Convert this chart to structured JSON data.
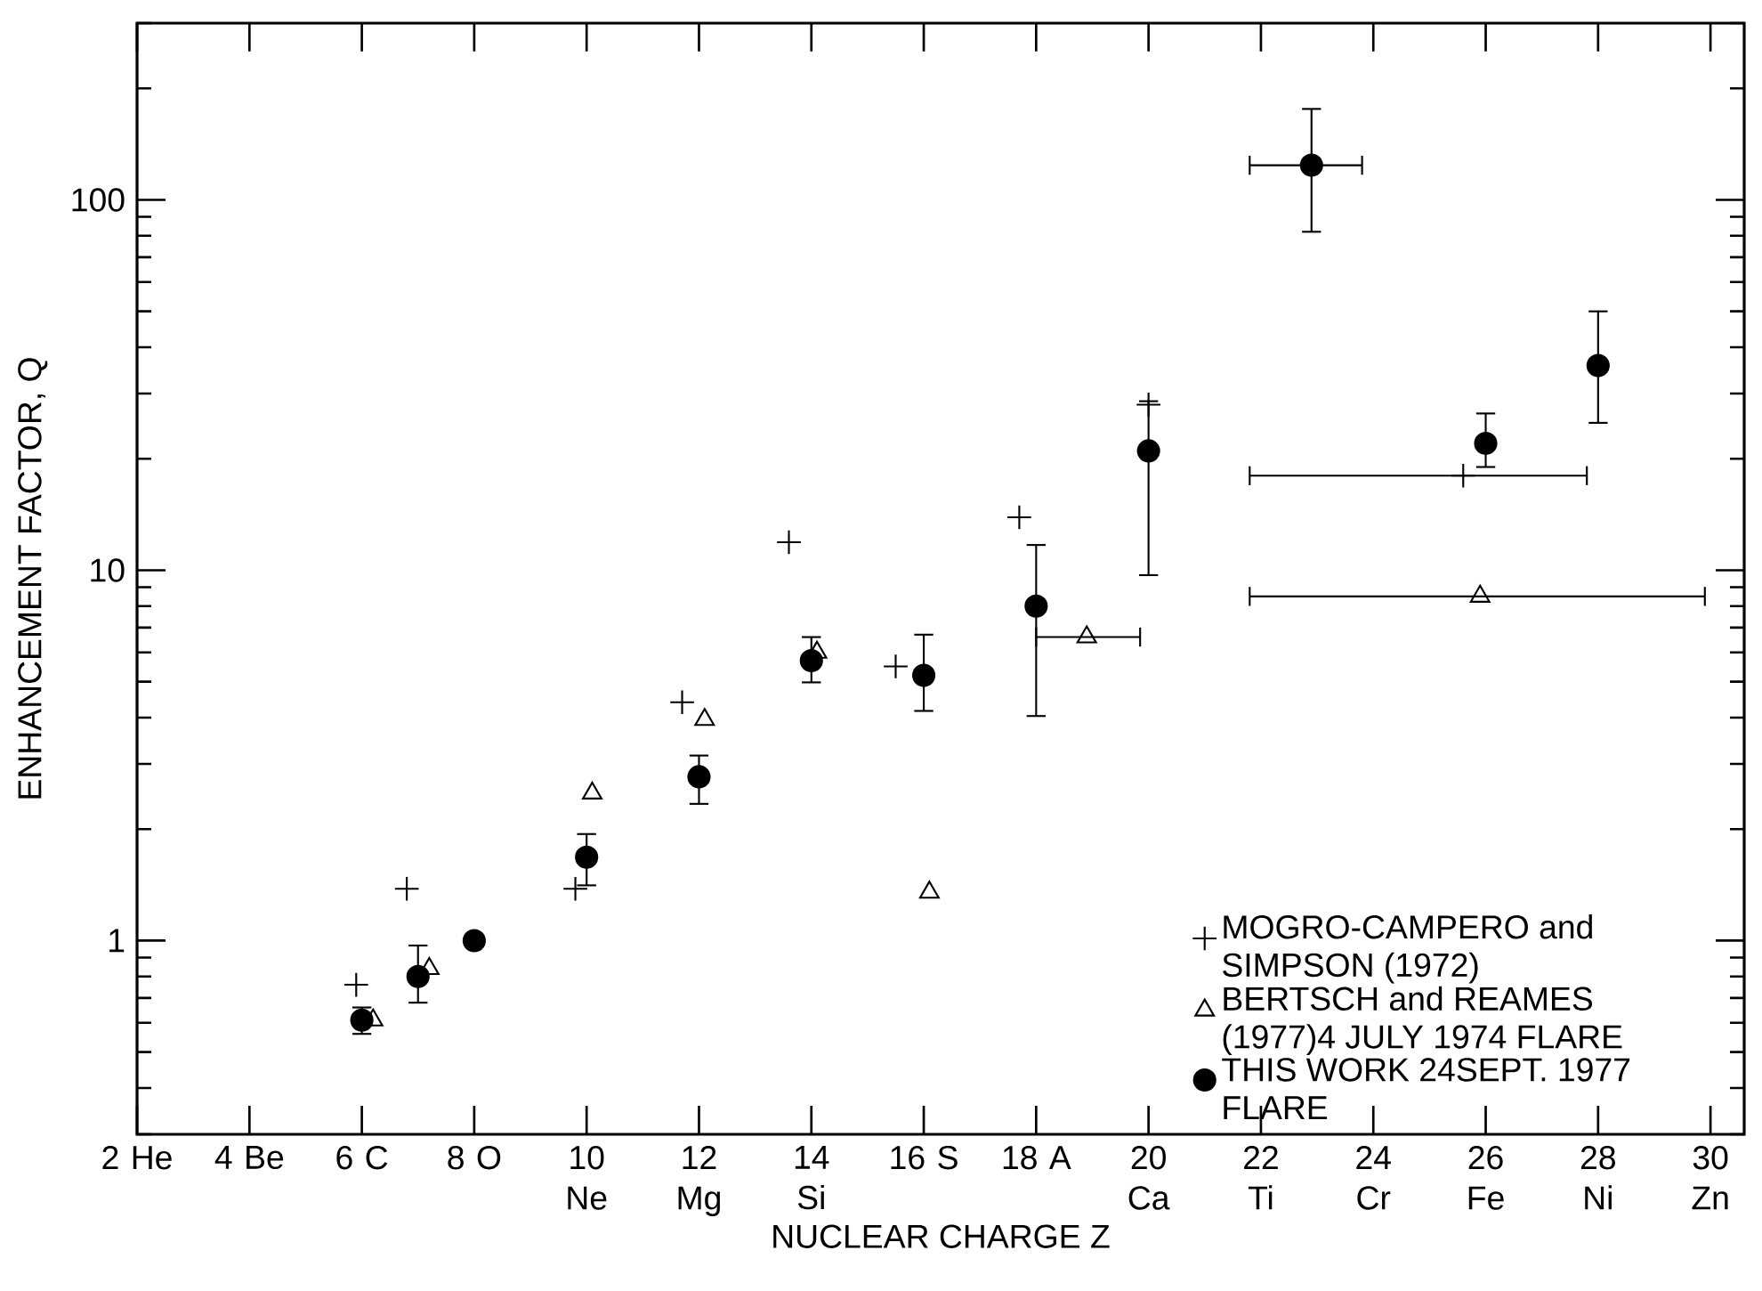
{
  "chart_data": {
    "type": "scatter",
    "xlabel": "NUCLEAR CHARGE Z",
    "ylabel": "ENHANCEMENT FACTOR, Q",
    "xlim": [
      2,
      30.6
    ],
    "ylim": [
      0.3,
      300
    ],
    "log": "y",
    "grid": false,
    "legend": "bottom right",
    "xticks": [
      {
        "value": 2,
        "label": "2 He"
      },
      {
        "value": 4,
        "label": "4 Be"
      },
      {
        "value": 6,
        "label": "6 C"
      },
      {
        "value": 8,
        "label": "8 O"
      },
      {
        "value": 10,
        "label": "10 Ne"
      },
      {
        "value": 12,
        "label": "12 Mg"
      },
      {
        "value": 14,
        "label": "14 Si"
      },
      {
        "value": 16,
        "label": "16 S"
      },
      {
        "value": 18,
        "label": "18 A"
      },
      {
        "value": 20,
        "label": "20 Ca"
      },
      {
        "value": 22,
        "label": "22 Ti"
      },
      {
        "value": 24,
        "label": "24 Cr"
      },
      {
        "value": 26,
        "label": "26 Fe"
      },
      {
        "value": 28,
        "label": "28 Ni"
      },
      {
        "value": 30,
        "label": "30 Zn"
      }
    ],
    "yticks": [
      1,
      10,
      100
    ],
    "series": [
      {
        "name": "MOGRO-CAMPERO and SIMPSON (1972)",
        "color": "#000000",
        "marker": "cross",
        "x": [
          5.9,
          6.8,
          9.8,
          11.7,
          13.6,
          15.5,
          17.7,
          20,
          25.6
        ],
        "values": [
          0.76,
          1.38,
          1.38,
          4.4,
          11.9,
          5.5,
          13.9,
          28,
          18
        ],
        "xerrors": [
          null,
          null,
          null,
          null,
          null,
          null,
          null,
          null,
          [
            21.8,
            27.8
          ]
        ]
      },
      {
        "name": "BERTSCH and REAMES (1977)4 JULY 1974 FLARE",
        "color": "#000000",
        "marker": "triangle",
        "x": [
          6.2,
          7.2,
          10.1,
          12.1,
          14.1,
          16.1,
          18.9,
          25.9
        ],
        "values": [
          0.61,
          0.84,
          2.5,
          3.95,
          6.0,
          1.35,
          6.6,
          8.5
        ],
        "xerrors": [
          null,
          null,
          null,
          null,
          null,
          null,
          [
            18,
            19.85
          ],
          [
            21.8,
            29.9
          ]
        ]
      },
      {
        "name": "THIS WORK 24SEPT. 1977 FLARE",
        "color": "#000000",
        "marker": "circle",
        "x": [
          6,
          7,
          8,
          10,
          12,
          14,
          16,
          18,
          20,
          22.9,
          26,
          28
        ],
        "values": [
          0.61,
          0.8,
          1.0,
          1.68,
          2.77,
          5.7,
          5.2,
          8.0,
          21,
          124,
          22,
          35.7
        ],
        "errors": [
          [
            0.56,
            0.66
          ],
          [
            0.68,
            0.97
          ],
          null,
          [
            1.41,
            1.94
          ],
          [
            2.34,
            3.16
          ],
          [
            4.98,
            6.6
          ],
          [
            4.17,
            6.7
          ],
          [
            4.04,
            11.7
          ],
          [
            9.7,
            28.6
          ],
          [
            82,
            176
          ],
          [
            19,
            26.5
          ],
          [
            25,
            50
          ]
        ],
        "xerrors": [
          null,
          null,
          null,
          null,
          null,
          null,
          null,
          null,
          null,
          [
            21.8,
            23.8
          ],
          null,
          null
        ]
      }
    ]
  }
}
